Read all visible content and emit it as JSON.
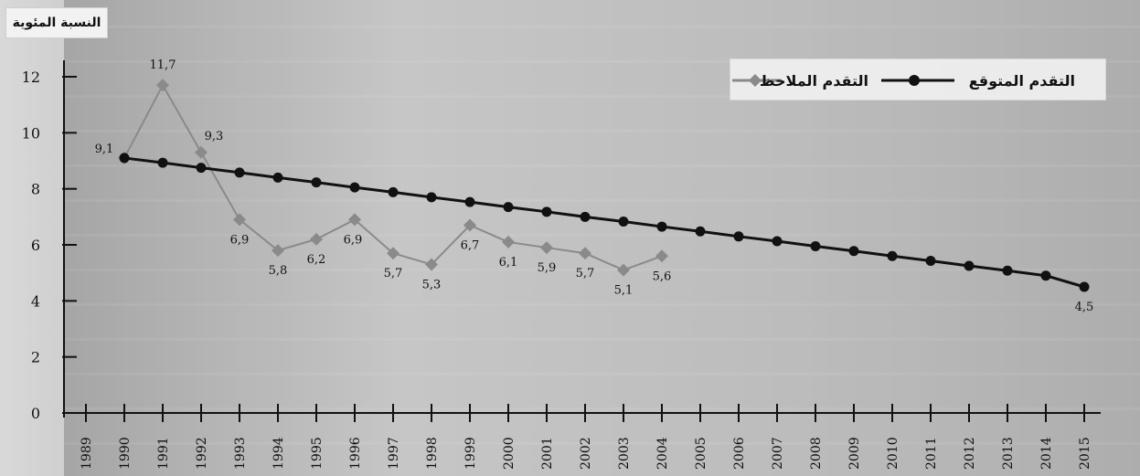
{
  "chart_data": {
    "type": "line",
    "title": "",
    "ylabel": "النسبة المئوية",
    "xlabel": "",
    "ylim": [
      0,
      12
    ],
    "yticks": [
      0,
      2,
      4,
      6,
      8,
      10,
      12
    ],
    "categories": [
      "1989",
      "1990",
      "1991",
      "1992",
      "1993",
      "1994",
      "1995",
      "1996",
      "1997",
      "1998",
      "1999",
      "2000",
      "2001",
      "2002",
      "2003",
      "2004",
      "2005",
      "2006",
      "2007",
      "2008",
      "2009",
      "2010",
      "2011",
      "2012",
      "2013",
      "2014",
      "2015"
    ],
    "legend_position": "top-right",
    "series": [
      {
        "name": "التقدم الملاحظ",
        "color": "#8a8a8a",
        "marker": "diamond",
        "points": [
          {
            "x": "1990",
            "y": 9.1,
            "label": "9,1"
          },
          {
            "x": "1991",
            "y": 11.7,
            "label": "11,7"
          },
          {
            "x": "1992",
            "y": 9.3,
            "label": "9,3"
          },
          {
            "x": "1993",
            "y": 6.9,
            "label": "6,9"
          },
          {
            "x": "1994",
            "y": 5.8,
            "label": "5,8"
          },
          {
            "x": "1995",
            "y": 6.2,
            "label": "6,2"
          },
          {
            "x": "1996",
            "y": 6.9,
            "label": "6,9"
          },
          {
            "x": "1997",
            "y": 5.7,
            "label": "5,7"
          },
          {
            "x": "1998",
            "y": 5.3,
            "label": "5,3"
          },
          {
            "x": "1999",
            "y": 6.7,
            "label": "6,7"
          },
          {
            "x": "2000",
            "y": 6.1,
            "label": "6,1"
          },
          {
            "x": "2001",
            "y": 5.9,
            "label": "5,9"
          },
          {
            "x": "2002",
            "y": 5.7,
            "label": "5,7"
          },
          {
            "x": "2003",
            "y": 5.1,
            "label": "5,1"
          },
          {
            "x": "2004",
            "y": 5.6,
            "label": "5,6"
          }
        ]
      },
      {
        "name": "التقدم المتوقع",
        "color": "#111111",
        "marker": "circle",
        "points": [
          {
            "x": "1990",
            "y": 9.1,
            "label": ""
          },
          {
            "x": "1991",
            "y": 8.93,
            "label": ""
          },
          {
            "x": "1992",
            "y": 8.75,
            "label": ""
          },
          {
            "x": "1993",
            "y": 8.58,
            "label": ""
          },
          {
            "x": "1994",
            "y": 8.4,
            "label": ""
          },
          {
            "x": "1995",
            "y": 8.23,
            "label": ""
          },
          {
            "x": "1996",
            "y": 8.05,
            "label": ""
          },
          {
            "x": "1997",
            "y": 7.88,
            "label": ""
          },
          {
            "x": "1998",
            "y": 7.7,
            "label": ""
          },
          {
            "x": "1999",
            "y": 7.53,
            "label": ""
          },
          {
            "x": "2000",
            "y": 7.35,
            "label": ""
          },
          {
            "x": "2001",
            "y": 7.18,
            "label": ""
          },
          {
            "x": "2002",
            "y": 7.0,
            "label": ""
          },
          {
            "x": "2003",
            "y": 6.83,
            "label": ""
          },
          {
            "x": "2004",
            "y": 6.65,
            "label": ""
          },
          {
            "x": "2005",
            "y": 6.48,
            "label": ""
          },
          {
            "x": "2006",
            "y": 6.3,
            "label": ""
          },
          {
            "x": "2007",
            "y": 6.13,
            "label": ""
          },
          {
            "x": "2008",
            "y": 5.95,
            "label": ""
          },
          {
            "x": "2009",
            "y": 5.78,
            "label": ""
          },
          {
            "x": "2010",
            "y": 5.6,
            "label": ""
          },
          {
            "x": "2011",
            "y": 5.43,
            "label": ""
          },
          {
            "x": "2012",
            "y": 5.25,
            "label": ""
          },
          {
            "x": "2013",
            "y": 5.08,
            "label": ""
          },
          {
            "x": "2014",
            "y": 4.9,
            "label": ""
          },
          {
            "x": "2015",
            "y": 4.5,
            "label": "4,5"
          }
        ]
      }
    ]
  }
}
